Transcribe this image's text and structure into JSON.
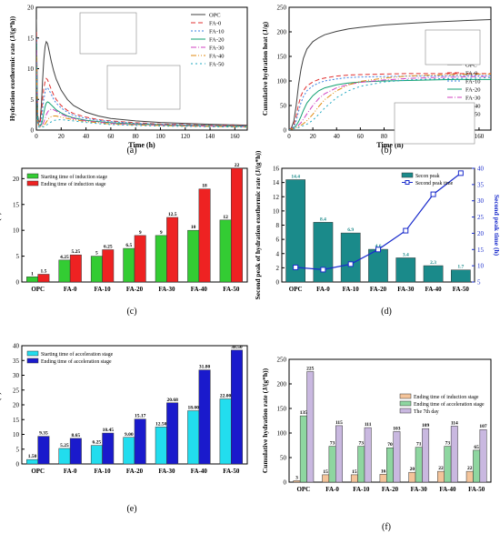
{
  "panels": [
    {
      "tag": "(a)"
    },
    {
      "tag": "(b)"
    },
    {
      "tag": "(c)"
    },
    {
      "tag": "(d)"
    },
    {
      "tag": "(e)"
    },
    {
      "tag": "(f)"
    }
  ],
  "chart_data": [
    {
      "type": "line",
      "panel": "a",
      "xlabel": "Time (h)",
      "ylabel": "Hydration exothermic rate (J/(g*h))",
      "xlim": [
        0,
        170
      ],
      "ylim": [
        0,
        20
      ],
      "xticks": [
        0,
        20,
        40,
        60,
        80,
        100,
        120,
        140,
        160
      ],
      "yticks": [
        0,
        5,
        10,
        15,
        20
      ],
      "grid": false,
      "legend": "top-right",
      "x": [
        0,
        1,
        2,
        3,
        4,
        5,
        6,
        7,
        8,
        9,
        10,
        12,
        14,
        16,
        20,
        25,
        30,
        40,
        50,
        60,
        80,
        100,
        120,
        140,
        160,
        170
      ],
      "series": [
        {
          "name": "OPC",
          "color": "#404040",
          "dash": "",
          "values": [
            18,
            2.5,
            1.2,
            1.6,
            4,
            8,
            11.5,
            13.6,
            14.4,
            14.1,
            13.2,
            11.2,
            9.6,
            8.3,
            6.5,
            5.0,
            4.0,
            2.9,
            2.3,
            1.9,
            1.5,
            1.25,
            1.1,
            0.95,
            0.85,
            0.8
          ]
        },
        {
          "name": "FA-0",
          "color": "#e03030",
          "dash": "5,3",
          "values": [
            16,
            2.2,
            1.0,
            1.2,
            2.5,
            5.0,
            6.8,
            7.9,
            8.4,
            8.2,
            7.7,
            6.6,
            5.7,
            5.0,
            4.0,
            3.2,
            2.7,
            2.1,
            1.7,
            1.5,
            1.2,
            1.0,
            0.9,
            0.8,
            0.75,
            0.7
          ]
        },
        {
          "name": "FA-10",
          "color": "#3a80e0",
          "dash": "2,2",
          "values": [
            15,
            2.0,
            0.9,
            0.8,
            1.5,
            3.2,
            5.0,
            6.2,
            6.8,
            6.9,
            6.6,
            5.8,
            5.0,
            4.4,
            3.6,
            2.9,
            2.4,
            1.9,
            1.6,
            1.4,
            1.1,
            0.95,
            0.85,
            0.75,
            0.7,
            0.65
          ]
        },
        {
          "name": "FA-20",
          "color": "#10a070",
          "dash": "",
          "values": [
            14,
            1.8,
            0.8,
            0.7,
            0.9,
            1.6,
            2.8,
            3.8,
            4.4,
            4.6,
            4.5,
            4.1,
            3.7,
            3.3,
            2.8,
            2.3,
            2.0,
            1.6,
            1.4,
            1.2,
            1.0,
            0.85,
            0.75,
            0.7,
            0.65,
            0.6
          ]
        },
        {
          "name": "FA-30",
          "color": "#d040c0",
          "dash": "6,2,1,2",
          "values": [
            13,
            1.6,
            0.7,
            0.6,
            0.7,
            0.9,
            1.3,
            1.9,
            2.5,
            2.9,
            3.2,
            3.4,
            3.3,
            3.1,
            2.6,
            2.2,
            1.9,
            1.5,
            1.3,
            1.1,
            0.9,
            0.8,
            0.7,
            0.65,
            0.6,
            0.55
          ]
        },
        {
          "name": "FA-40",
          "color": "#e08a10",
          "dash": "6,2,1,2,1,2",
          "values": [
            12,
            1.4,
            0.6,
            0.5,
            0.55,
            0.65,
            0.8,
            1.0,
            1.3,
            1.6,
            1.9,
            2.2,
            2.3,
            2.3,
            2.1,
            1.9,
            1.7,
            1.4,
            1.2,
            1.0,
            0.85,
            0.75,
            0.65,
            0.6,
            0.55,
            0.5
          ]
        },
        {
          "name": "FA-50",
          "color": "#20a8c0",
          "dash": "2,3",
          "values": [
            11,
            1.2,
            0.5,
            0.45,
            0.45,
            0.5,
            0.55,
            0.65,
            0.8,
            0.95,
            1.1,
            1.35,
            1.55,
            1.65,
            1.7,
            1.6,
            1.5,
            1.25,
            1.05,
            0.9,
            0.75,
            0.65,
            0.6,
            0.55,
            0.5,
            0.48
          ]
        }
      ]
    },
    {
      "type": "line",
      "panel": "b",
      "xlabel": "Time (h)",
      "ylabel": "Cumulative hydration heat (J/g)",
      "xlim": [
        0,
        170
      ],
      "ylim": [
        0,
        250
      ],
      "xticks": [
        0,
        20,
        40,
        60,
        80,
        100,
        120,
        140,
        160
      ],
      "yticks": [
        0,
        50,
        100,
        150,
        200,
        250
      ],
      "grid": false,
      "legend": "bottom-right",
      "x": [
        0,
        2,
        4,
        6,
        8,
        10,
        12,
        15,
        20,
        25,
        30,
        40,
        50,
        60,
        80,
        100,
        120,
        140,
        160,
        170
      ],
      "series": [
        {
          "name": "OPC",
          "color": "#404040",
          "dash": "",
          "values": [
            0,
            5,
            18,
            50,
            92,
            124,
            146,
            165,
            180,
            188,
            194,
            201,
            206,
            209,
            214,
            217,
            220,
            222,
            224,
            225
          ]
        },
        {
          "name": "FA-0",
          "color": "#e03030",
          "dash": "5,3",
          "values": [
            0,
            4,
            10,
            28,
            52,
            70,
            80,
            90,
            98,
            103,
            106,
            110,
            112,
            113,
            114,
            115,
            115,
            115,
            115,
            115
          ]
        },
        {
          "name": "FA-10",
          "color": "#3a80e0",
          "dash": "2,2",
          "values": [
            0,
            3,
            7,
            18,
            38,
            56,
            68,
            80,
            90,
            96,
            100,
            104,
            107,
            108,
            109,
            110,
            110,
            111,
            111,
            111
          ]
        },
        {
          "name": "FA-20",
          "color": "#10a070",
          "dash": "",
          "values": [
            0,
            2,
            5,
            9,
            17,
            28,
            40,
            55,
            70,
            80,
            86,
            92,
            96,
            98,
            100,
            101,
            102,
            103,
            103,
            103
          ]
        },
        {
          "name": "FA-30",
          "color": "#d040c0",
          "dash": "6,2,1,2",
          "values": [
            0,
            2,
            4,
            6,
            10,
            15,
            22,
            33,
            50,
            64,
            74,
            86,
            93,
            97,
            102,
            105,
            107,
            108,
            109,
            109
          ]
        },
        {
          "name": "FA-40",
          "color": "#e08a10",
          "dash": "6,2,1,2,1,2",
          "values": [
            0,
            2,
            3,
            5,
            7,
            10,
            13,
            19,
            32,
            48,
            62,
            80,
            92,
            99,
            106,
            110,
            112,
            113,
            114,
            114
          ]
        },
        {
          "name": "FA-50",
          "color": "#20a8c0",
          "dash": "2,3",
          "values": [
            0,
            2,
            3,
            4,
            5,
            7,
            9,
            12,
            20,
            32,
            45,
            66,
            80,
            89,
            98,
            102,
            104,
            105,
            106,
            107
          ]
        }
      ]
    },
    {
      "type": "bar",
      "panel": "c",
      "ylabel": "Time (h)",
      "categories": [
        "OPC",
        "FA-0",
        "FA-10",
        "FA-20",
        "FA-30",
        "FA-40",
        "FA-50"
      ],
      "ylim": [
        0,
        22
      ],
      "yticks": [
        0,
        5,
        10,
        15,
        20
      ],
      "grid": false,
      "legend": "top-left",
      "series": [
        {
          "name": "Starting time of induction stage",
          "color": "#33cc33",
          "values": [
            1,
            4.25,
            5,
            6.5,
            9,
            10,
            12
          ],
          "labels": [
            "1",
            "4.25",
            "5",
            "6.5",
            "9",
            "10",
            "12"
          ]
        },
        {
          "name": "Ending time of induction stage",
          "color": "#ee2222",
          "values": [
            1.5,
            5.25,
            6.25,
            9,
            12.5,
            18,
            22
          ],
          "labels": [
            "1.5",
            "5.25",
            "6.25",
            "9",
            "12.5",
            "18",
            "22"
          ]
        }
      ]
    },
    {
      "type": "bar",
      "panel": "d",
      "ylabel": "Second peak of hydration exothermic rate (J/(g*h))",
      "y2label": "Second peak time (h)",
      "categories": [
        "OPC",
        "FA-0",
        "FA-10",
        "FA-20",
        "FA-30",
        "FA-40",
        "FA-50"
      ],
      "ylim": [
        0,
        16
      ],
      "yticks": [
        0,
        2,
        4,
        6,
        8,
        10,
        12,
        14,
        16
      ],
      "y2lim": [
        5,
        40
      ],
      "y2ticks": [
        5,
        10,
        15,
        20,
        25,
        30,
        35,
        40
      ],
      "grid": false,
      "legend": "top-right",
      "series": [
        {
          "name": "Secon peak",
          "color": "#1a8a8a",
          "values": [
            14.4,
            8.4,
            6.9,
            4.6,
            3.4,
            2.3,
            1.7
          ],
          "labels": [
            "14.4",
            "8.4",
            "6.9",
            "4.6",
            "3.4",
            "2.3",
            "1.7"
          ]
        },
        {
          "name": "Second peak time",
          "color": "#1a2ccc",
          "axis": "right",
          "values": [
            9.5,
            8.8,
            10.5,
            15,
            20.8,
            32,
            38.5
          ]
        }
      ]
    },
    {
      "type": "bar",
      "panel": "e",
      "ylabel": "Time (h)",
      "categories": [
        "OPC",
        "FA-0",
        "FA-10",
        "FA-20",
        "FA-30",
        "FA-40",
        "FA-50"
      ],
      "ylim": [
        0,
        40
      ],
      "yticks": [
        0,
        5,
        10,
        15,
        20,
        25,
        30,
        35,
        40
      ],
      "grid": false,
      "legend": "top-left",
      "series": [
        {
          "name": "Starting time of acceleration stage",
          "color": "#22ddee",
          "values": [
            1.5,
            5.25,
            6.25,
            9.0,
            12.5,
            18.0,
            22.0
          ],
          "labels": [
            "1.50",
            "5.25",
            "6.25",
            "9.00",
            "12.50",
            "18.00",
            "22.00"
          ]
        },
        {
          "name": "Ending time of acceleration stage",
          "color": "#1a1acc",
          "values": [
            9.35,
            8.65,
            10.45,
            15.17,
            20.68,
            31.8,
            38.5
          ],
          "labels": [
            "9.35",
            "8.65",
            "10.45",
            "15.17",
            "20.68",
            "31.80",
            "38.50"
          ]
        }
      ]
    },
    {
      "type": "bar",
      "panel": "f",
      "ylabel": "Cumulative hydration rate (J/(g*h))",
      "categories": [
        "OPC",
        "FA-0",
        "FA-10",
        "FA-20",
        "FA-30",
        "FA-40",
        "FA-50"
      ],
      "ylim": [
        0,
        250
      ],
      "yticks": [
        0,
        50,
        100,
        150,
        200,
        250
      ],
      "grid": false,
      "legend": "center-right",
      "series": [
        {
          "name": "Ending time of induction stage",
          "color": "#f4c49a",
          "values": [
            3,
            15,
            15,
            16,
            20,
            22,
            22
          ],
          "labels": [
            "3",
            "15",
            "15",
            "16",
            "20",
            "22",
            "22"
          ]
        },
        {
          "name": "Ending time of acceleration stage",
          "color": "#8ed6a0",
          "values": [
            135,
            73,
            73,
            70,
            71,
            73,
            65
          ],
          "labels": [
            "135",
            "73",
            "73",
            "70",
            "71",
            "73",
            "65"
          ]
        },
        {
          "name": "The 7th day",
          "color": "#c9b8e0",
          "values": [
            225,
            115,
            111,
            103,
            109,
            114,
            107
          ],
          "labels": [
            "225",
            "115",
            "111",
            "103",
            "109",
            "114",
            "107"
          ]
        }
      ]
    }
  ]
}
